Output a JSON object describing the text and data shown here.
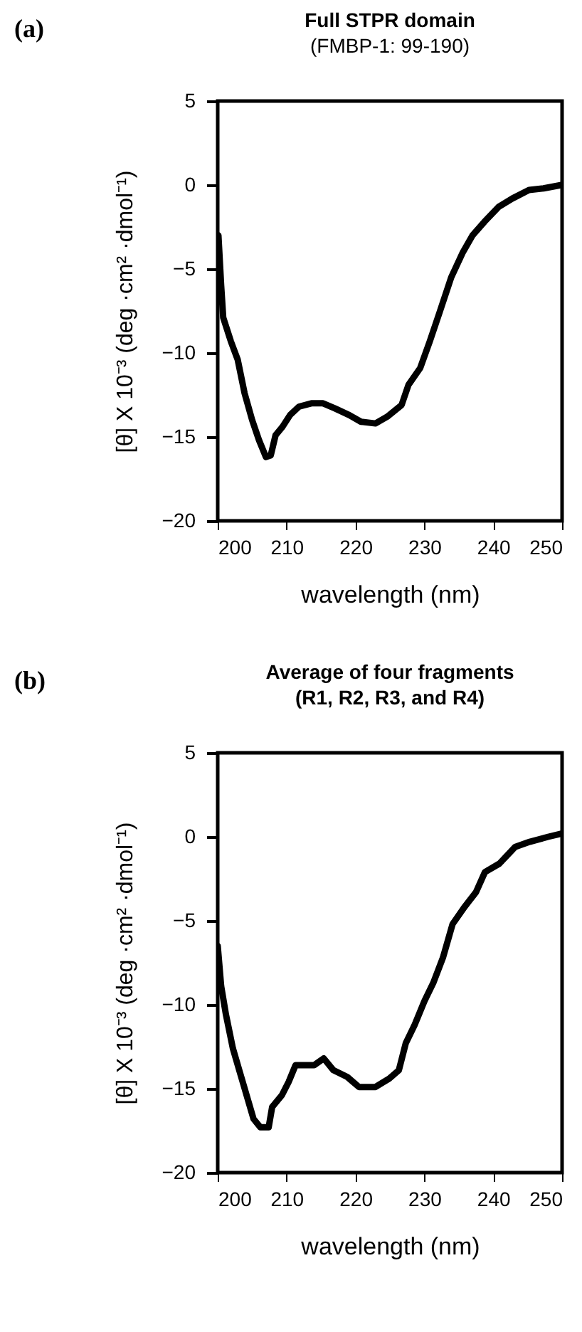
{
  "chart_data": [
    {
      "type": "line",
      "title": "Full STPR domain",
      "subtitle": "(FMBP-1: 99-190)",
      "xlabel": "wavelength (nm)",
      "ylabel": "[θ] X 10⁻³  (deg ·cm² ·dmol⁻¹)",
      "annotations": [
        "(a)"
      ],
      "series": [
        {
          "color": "#000000",
          "x": [
            200.1,
            200.5,
            200.8,
            201.9,
            202.9,
            203.9,
            205,
            206,
            207,
            207.7,
            208.4,
            209.4,
            210.5,
            211.8,
            213.6,
            215.3,
            217,
            219.1,
            220.8,
            222.9,
            224.6,
            226.7,
            227.7,
            229.4,
            230.8,
            232.2,
            233.9,
            235.6,
            237,
            238.7,
            240.8,
            242.8,
            245.2,
            247.3,
            249.9
          ],
          "values": [
            -3.0,
            -6.0,
            -7.9,
            -9.3,
            -10.4,
            -12.4,
            -14.0,
            -15.2,
            -16.2,
            -16.1,
            -14.9,
            -14.4,
            -13.7,
            -13.2,
            -13.0,
            -13.0,
            -13.3,
            -13.7,
            -14.1,
            -14.2,
            -13.8,
            -13.1,
            -11.9,
            -10.9,
            -9.3,
            -7.6,
            -5.5,
            -4.0,
            -3.0,
            -2.2,
            -1.3,
            -0.8,
            -0.3,
            -0.2,
            0
          ]
        }
      ],
      "xlim": [
        200,
        250
      ],
      "xticks": [
        200,
        210,
        220,
        230,
        240,
        250
      ],
      "ylim": [
        -20,
        5
      ],
      "yticks": [
        -20,
        -15,
        -10,
        -5,
        0,
        5
      ],
      "grid": false
    },
    {
      "type": "line",
      "title": "Average of four fragments",
      "subtitle": "(R1, R2, R3, and R4)",
      "xlabel": "wavelength (nm)",
      "ylabel": "[θ] X 10⁻³  (deg ·cm² ·dmol⁻¹)",
      "annotations": [
        "(b)"
      ],
      "series": [
        {
          "color": "#000000",
          "x": [
            200,
            200.5,
            201.2,
            202.2,
            203.2,
            204.2,
            205.2,
            206.2,
            207.4,
            207.9,
            209.3,
            210.3,
            211.3,
            213,
            214,
            215.4,
            216.8,
            218.8,
            220.5,
            222.9,
            224.9,
            226.3,
            227.3,
            228.6,
            230,
            231.3,
            232.7,
            234.1,
            235.8,
            237.5,
            238.8,
            240.9,
            243.2,
            245.3,
            248,
            250
          ],
          "values": [
            -6.5,
            -8.9,
            -10.6,
            -12.6,
            -14.0,
            -15.4,
            -16.8,
            -17.3,
            -17.3,
            -16.1,
            -15.4,
            -14.6,
            -13.6,
            -13.6,
            -13.6,
            -13.2,
            -13.9,
            -14.3,
            -14.9,
            -14.9,
            -14.4,
            -13.9,
            -12.3,
            -11.2,
            -9.8,
            -8.7,
            -7.2,
            -5.2,
            -4.2,
            -3.3,
            -2.1,
            -1.6,
            -0.6,
            -0.3,
            0,
            0.2
          ]
        }
      ],
      "xlim": [
        200,
        250
      ],
      "xticks": [
        200,
        210,
        220,
        230,
        240,
        250
      ],
      "ylim": [
        -20,
        5
      ],
      "yticks": [
        -20,
        -15,
        -10,
        -5,
        0,
        5
      ],
      "grid": false
    }
  ]
}
